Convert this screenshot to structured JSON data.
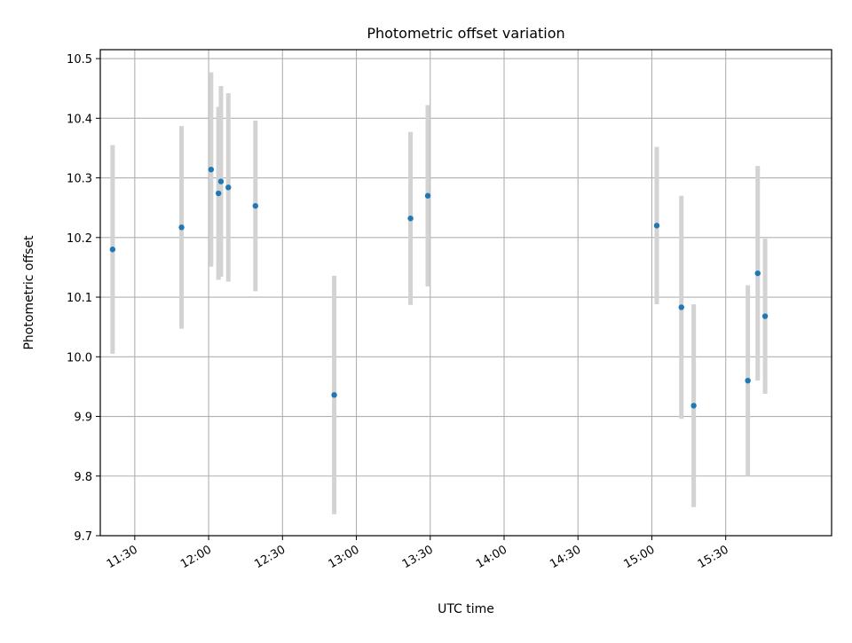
{
  "chart_data": {
    "type": "scatter",
    "title": "Photometric offset variation",
    "xlabel": "UTC time",
    "ylabel": "Photometric offset",
    "x_ticks": [
      "11:30",
      "12:00",
      "12:30",
      "13:00",
      "13:30",
      "14:00",
      "14:30",
      "15:00",
      "15:30"
    ],
    "xlim": [
      "11:16",
      "16:13"
    ],
    "ylim": [
      9.7,
      10.515
    ],
    "y_ticks": [
      "9.7",
      "9.8",
      "9.9",
      "10.0",
      "10.1",
      "10.2",
      "10.3",
      "10.4",
      "10.5"
    ],
    "grid": true,
    "points": [
      {
        "x": "11:21",
        "y": 10.18,
        "yerr": 0.175
      },
      {
        "x": "11:49",
        "y": 10.217,
        "yerr": 0.17
      },
      {
        "x": "12:01",
        "y": 10.314,
        "yerr": 0.163
      },
      {
        "x": "12:04",
        "y": 10.274,
        "yerr": 0.145
      },
      {
        "x": "12:05",
        "y": 10.294,
        "yerr": 0.16
      },
      {
        "x": "12:08",
        "y": 10.284,
        "yerr": 0.158
      },
      {
        "x": "12:19",
        "y": 10.253,
        "yerr": 0.143
      },
      {
        "x": "12:51",
        "y": 9.936,
        "yerr": 0.2
      },
      {
        "x": "13:22",
        "y": 10.232,
        "yerr": 0.145
      },
      {
        "x": "13:29",
        "y": 10.27,
        "yerr": 0.152
      },
      {
        "x": "15:02",
        "y": 10.22,
        "yerr": 0.132
      },
      {
        "x": "15:12",
        "y": 10.083,
        "yerr": 0.187
      },
      {
        "x": "15:17",
        "y": 9.918,
        "yerr": 0.17
      },
      {
        "x": "15:39",
        "y": 9.96,
        "yerr": 0.16
      },
      {
        "x": "15:43",
        "y": 10.14,
        "yerr": 0.18
      },
      {
        "x": "15:46",
        "y": 10.068,
        "yerr": 0.13
      }
    ],
    "marker_color": "#1f77b4",
    "errorbar_color": "#d3d3d3"
  }
}
